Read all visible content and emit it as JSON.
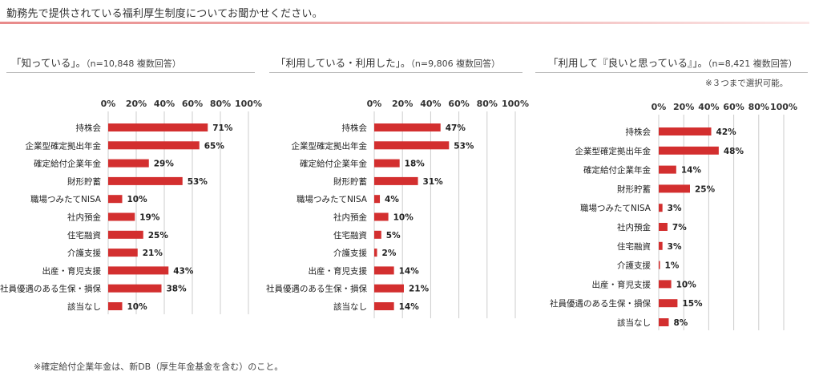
{
  "title": "勤務先で提供されている福利厚生制度についてお聞かせください。",
  "footnote": "※確定給付企業年金は、新DB（厚生年金基金を含む）のこと。",
  "panels": [
    {
      "heading": "「知っている」。",
      "n_label": "（n=10,848 複数回答）",
      "note": ""
    },
    {
      "heading": "「利用している・利用した」。",
      "n_label": "（n=9,806 複数回答）",
      "note": ""
    },
    {
      "heading": "「利用して『良いと思っている』」。",
      "n_label": "（n=8,421 複数回答）",
      "note": "※３つまで選択可能。"
    }
  ],
  "colors": {
    "bar": "#d32f2f",
    "grid": "#cccccc",
    "heading_rule": "#bbbbbb"
  },
  "chart_data": [
    {
      "type": "bar",
      "orientation": "horizontal",
      "title": "「知っている」。",
      "xlim": [
        0,
        100
      ],
      "ticks": [
        "0%",
        "20%",
        "40%",
        "60%",
        "80%",
        "100%"
      ],
      "categories": [
        "持株会",
        "企業型確定拠出年金",
        "確定給付企業年金",
        "財形貯蓄",
        "職場つみたてNISA",
        "社内預金",
        "住宅融資",
        "介護支援",
        "出産・育児支援",
        "社員優遇のある生保・損保",
        "該当なし"
      ],
      "values": [
        71,
        65,
        29,
        53,
        10,
        19,
        25,
        21,
        43,
        38,
        10
      ],
      "labels": [
        "71%",
        "65%",
        "29%",
        "53%",
        "10%",
        "19%",
        "25%",
        "21%",
        "43%",
        "38%",
        "10%"
      ]
    },
    {
      "type": "bar",
      "orientation": "horizontal",
      "title": "「利用している・利用した」。",
      "xlim": [
        0,
        100
      ],
      "ticks": [
        "0%",
        "20%",
        "40%",
        "60%",
        "80%",
        "100%"
      ],
      "categories": [
        "持株会",
        "企業型確定拠出年金",
        "確定給付企業年金",
        "財形貯蓄",
        "職場つみたてNISA",
        "社内預金",
        "住宅融資",
        "介護支援",
        "出産・育児支援",
        "社員優遇のある生保・損保",
        "該当なし"
      ],
      "values": [
        47,
        53,
        18,
        31,
        4,
        10,
        5,
        2,
        14,
        21,
        14
      ],
      "labels": [
        "47%",
        "53%",
        "18%",
        "31%",
        "4%",
        "10%",
        "5%",
        "2%",
        "14%",
        "21%",
        "14%"
      ]
    },
    {
      "type": "bar",
      "orientation": "horizontal",
      "title": "「利用して『良いと思っている』」。",
      "xlim": [
        0,
        100
      ],
      "ticks": [
        "0%",
        "20%",
        "40%",
        "60%",
        "80%",
        "100%"
      ],
      "categories": [
        "持株会",
        "企業型確定拠出年金",
        "確定給付企業年金",
        "財形貯蓄",
        "職場つみたてNISA",
        "社内預金",
        "住宅融資",
        "介護支援",
        "出産・育児支援",
        "社員優遇のある生保・損保",
        "該当なし"
      ],
      "values": [
        42,
        48,
        14,
        25,
        3,
        7,
        3,
        1,
        10,
        15,
        8
      ],
      "labels": [
        "42%",
        "48%",
        "14%",
        "25%",
        "3%",
        "7%",
        "3%",
        "1%",
        "10%",
        "15%",
        "8%"
      ]
    }
  ]
}
